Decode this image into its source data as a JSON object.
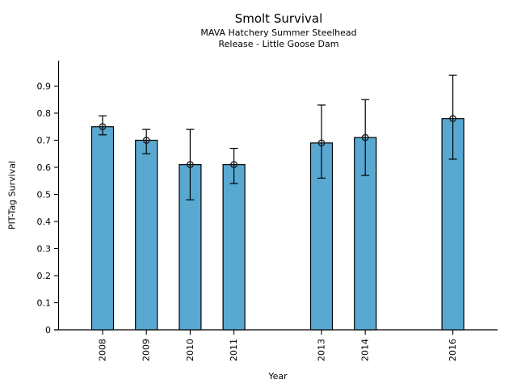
{
  "chart_data": {
    "type": "bar",
    "title": "Smolt Survival",
    "subtitle_lines": [
      "MAVA Hatchery Summer Steelhead",
      "Release - Little Goose Dam"
    ],
    "xlabel": "Year",
    "ylabel": "PIT-Tag Survival",
    "categories": [
      2008,
      2009,
      2010,
      2011,
      2013,
      2014,
      2016
    ],
    "values": [
      0.75,
      0.7,
      0.61,
      0.61,
      0.69,
      0.71,
      0.78
    ],
    "error_low": [
      0.72,
      0.65,
      0.48,
      0.54,
      0.56,
      0.57,
      0.63
    ],
    "error_high": [
      0.79,
      0.74,
      0.74,
      0.67,
      0.83,
      0.85,
      0.94
    ],
    "ylim": [
      0,
      1.0
    ],
    "xlim": [
      2007,
      2017.1
    ],
    "ytick_values": [
      0,
      0.1,
      0.2,
      0.3,
      0.4,
      0.5,
      0.6,
      0.7,
      0.8,
      0.9
    ],
    "ytick_labels": [
      "0",
      "0.1",
      "0.2",
      "0.3",
      "0.4",
      "0.5",
      "0.6",
      "0.7",
      "0.8",
      "0.9"
    ],
    "xtick_labels": [
      "2008",
      "2009",
      "2010",
      "2011",
      "2013",
      "2014",
      "2016"
    ],
    "grid": false,
    "legend": "none",
    "marker": "open-circle",
    "bar_color": "#58a8d2",
    "bar_edge_color": "#000000",
    "error_color": "#000000",
    "marker_edge_color": "#1f1f1f",
    "background_color": "#ffffff"
  }
}
